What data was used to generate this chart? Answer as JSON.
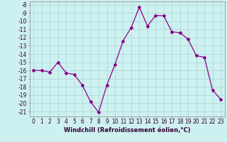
{
  "x": [
    0,
    1,
    2,
    3,
    4,
    5,
    6,
    7,
    8,
    9,
    10,
    11,
    12,
    13,
    14,
    15,
    16,
    17,
    18,
    19,
    20,
    21,
    22,
    23
  ],
  "y": [
    -16,
    -16,
    -16.2,
    -15,
    -16.3,
    -16.5,
    -17.8,
    -19.8,
    -21.1,
    -17.8,
    -15.3,
    -12.4,
    -10.8,
    -8.3,
    -10.6,
    -9.3,
    -9.35,
    -11.3,
    -11.4,
    -12.2,
    -14.2,
    -14.4,
    -18.4,
    -19.5
  ],
  "line_color": "#8b008b",
  "marker": "D",
  "markersize": 2.0,
  "linewidth": 0.9,
  "bg_color": "#cdf0f0",
  "grid_color": "#aed4d4",
  "xlabel": "Windchill (Refroidissement éolien,°C)",
  "xlabel_fontsize": 6.0,
  "ylabel_ticks": [
    -8,
    -9,
    -10,
    -11,
    -12,
    -13,
    -14,
    -15,
    -16,
    -17,
    -18,
    -19,
    -20,
    -21
  ],
  "xlim": [
    -0.5,
    23.5
  ],
  "ylim": [
    -21.6,
    -7.6
  ],
  "tick_fontsize": 5.5
}
